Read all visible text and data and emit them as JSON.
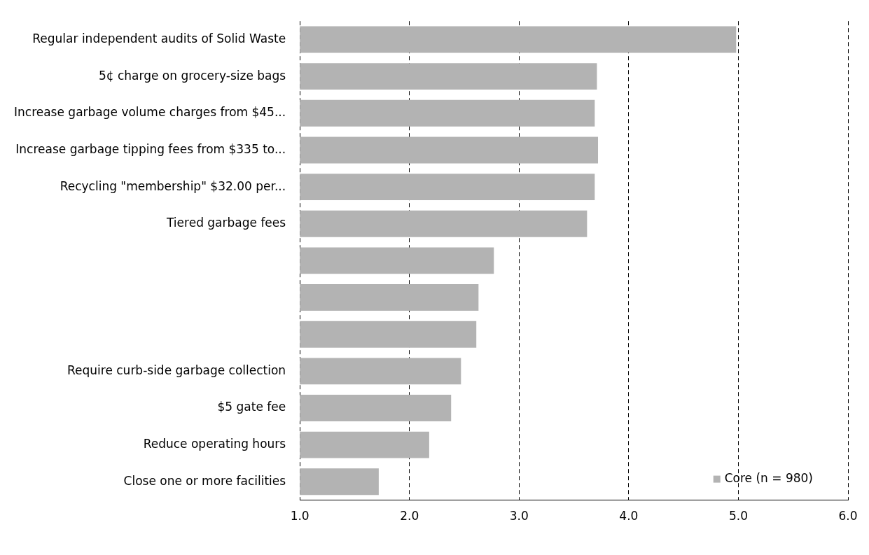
{
  "chart_data": {
    "type": "bar",
    "orientation": "horizontal",
    "categories": [
      "Regular independent audits of Solid Waste",
      "5¢ charge on grocery-size bags",
      "Increase garbage volume charges from $45...",
      "Increase garbage tipping fees from $335 to...",
      "Recycling \"membership\" $32.00 per...",
      "Tiered garbage fees",
      null,
      null,
      null,
      "Require curb-side garbage collection",
      "$5 gate fee",
      "Reduce operating hours",
      "Close one or more facilities"
    ],
    "series": [
      {
        "name": "Core (n = 980)",
        "color": "#b3b3b3",
        "values": [
          4.98,
          3.71,
          3.69,
          3.72,
          3.69,
          3.62,
          2.77,
          2.63,
          2.61,
          2.47,
          2.38,
          2.18,
          1.72
        ]
      }
    ],
    "xlim": [
      1,
      6
    ],
    "xticks": [
      {
        "value": 1,
        "label": "1.0"
      },
      {
        "value": 2,
        "label": "2.0"
      },
      {
        "value": 3,
        "label": "3.0"
      },
      {
        "value": 4,
        "label": "4.0"
      },
      {
        "value": 5,
        "label": "5.0"
      },
      {
        "value": 6,
        "label": "6.0"
      }
    ],
    "grid": "x",
    "legend": "bottom right"
  }
}
